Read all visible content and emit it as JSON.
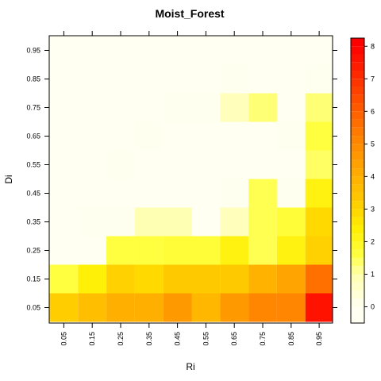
{
  "chart_data": {
    "type": "heatmap",
    "title": "Moist_Forest",
    "xlabel": "Ri",
    "ylabel": "Di",
    "x_categories": [
      "0.05",
      "0.15",
      "0.25",
      "0.35",
      "0.45",
      "0.55",
      "0.65",
      "0.75",
      "0.85",
      "0.95"
    ],
    "y_categories": [
      "0.05",
      "0.15",
      "0.25",
      "0.35",
      "0.45",
      "0.55",
      "0.65",
      "0.75",
      "0.85",
      "0.95"
    ],
    "values": [
      [
        3.2,
        3.6,
        4.0,
        4.0,
        4.6,
        3.8,
        4.6,
        5.1,
        5.1,
        7.6
      ],
      [
        1.6,
        2.3,
        3.1,
        2.9,
        3.3,
        3.3,
        3.3,
        3.9,
        4.3,
        5.6
      ],
      [
        0.0,
        0.0,
        1.6,
        1.6,
        1.7,
        1.7,
        2.2,
        1.5,
        2.2,
        3.1
      ],
      [
        0.0,
        0.05,
        0.05,
        0.9,
        0.9,
        0.0,
        0.8,
        1.5,
        1.7,
        2.9
      ],
      [
        0.0,
        0.0,
        0.0,
        0.0,
        0.0,
        0.0,
        0.05,
        1.5,
        0.05,
        2.2
      ],
      [
        0.0,
        0.0,
        0.05,
        0.0,
        0.0,
        0.0,
        0.0,
        0.0,
        0.0,
        1.4
      ],
      [
        0.0,
        0.0,
        0.0,
        0.05,
        0.0,
        0.0,
        0.0,
        0.0,
        0.05,
        1.6
      ],
      [
        0.0,
        0.0,
        0.0,
        0.0,
        0.05,
        0.05,
        0.8,
        1.3,
        0.0,
        1.3
      ],
      [
        0.0,
        0.0,
        0.0,
        0.0,
        0.0,
        0.0,
        0.05,
        0.0,
        0.0,
        0.05
      ],
      [
        0.0,
        0.0,
        0.0,
        0.0,
        0.0,
        0.0,
        0.0,
        0.0,
        0.0,
        0.0
      ]
    ],
    "colorbar": {
      "range": [
        -0.5,
        8.25
      ],
      "ticks": [
        "0",
        "1",
        "2",
        "3",
        "4",
        "5",
        "6",
        "7",
        "8"
      ],
      "palette": "heat"
    },
    "grid": false
  }
}
